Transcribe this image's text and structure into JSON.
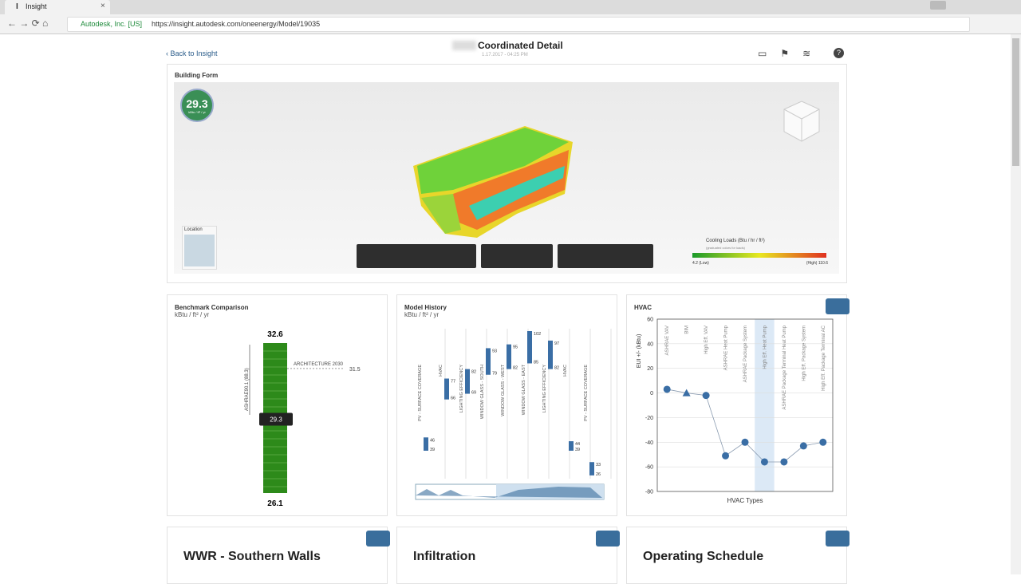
{
  "browser": {
    "tab_title": "Insight",
    "site_identity": "Autodesk, Inc. [US]",
    "url": "https://insight.autodesk.com/oneenergy/Model/19035"
  },
  "header": {
    "back_link": "Back to Insight",
    "title": "Coordinated Detail",
    "timestamp": "1.17.2017 - 04:25 PM"
  },
  "building_form": {
    "title": "Building Form",
    "eui_value": 29.3,
    "eui_unit": "kBtu / ft² / yr",
    "location_label": "Location",
    "legend_title": "Cooling Loads (Btu / hr / ft²)",
    "legend_subtitle": "(graduated colors for loads)",
    "legend_low": "4.2 (Low)",
    "legend_high": "(High) 110.6"
  },
  "benchmark": {
    "title": "Benchmark Comparison",
    "unit": "kBtu / ft² / yr",
    "max": 32.6,
    "min": 26.1,
    "current": 29.3,
    "target_label": "ARCHITECTURE 2030",
    "target": 31.5,
    "axis_label": "ASHRAE90.1 (88.3)"
  },
  "model_history": {
    "title": "Model History",
    "unit": "kBtu / ft² / yr",
    "steps": [
      {
        "label": "PV - SURFACE COVERAGE",
        "high": 46,
        "low": 39
      },
      {
        "label": "HVAC",
        "high": 77,
        "low": 66
      },
      {
        "label": "LIGHTING EFFICIENCY",
        "high": 82,
        "low": 69
      },
      {
        "label": "WINDOW GLASS - SOUTH",
        "high": 93,
        "low": 79
      },
      {
        "label": "WINDOW GLASS - WEST",
        "high": 95,
        "low": 82
      },
      {
        "label": "WINDOW GLASS - EAST",
        "high": 102,
        "low": 85
      },
      {
        "label": "LIGHTING EFFICIENCY",
        "high": 97,
        "low": 82
      },
      {
        "label": "HVAC",
        "high": 44,
        "low": 39
      },
      {
        "label": "PV - SURFACE COVERAGE",
        "high": 33,
        "low": 26
      }
    ]
  },
  "hvac": {
    "title": "HVAC",
    "y_axis_label": "EUI +/- (kBtu)",
    "x_axis_label": "HVAC Types",
    "ylim": [
      -80,
      60
    ],
    "yticks": [
      60,
      40,
      20,
      0,
      -20,
      -40,
      -60,
      -80
    ],
    "categories": [
      "ASHRAE VAV",
      "BIM",
      "High Eff. VAV",
      "ASHRAE Heat Pump",
      "ASHRAE Package System",
      "High Eff. Heat Pump",
      "ASHRAE Package Terminal Heat Pump",
      "High Eff. Package System",
      "High Eff. Package Terminal AC"
    ],
    "values": [
      3,
      0,
      -2,
      -51,
      -40,
      -56,
      -56,
      -43,
      -40
    ]
  },
  "cards": [
    "WWR - Southern Walls",
    "Infiltration",
    "Operating Schedule"
  ]
}
